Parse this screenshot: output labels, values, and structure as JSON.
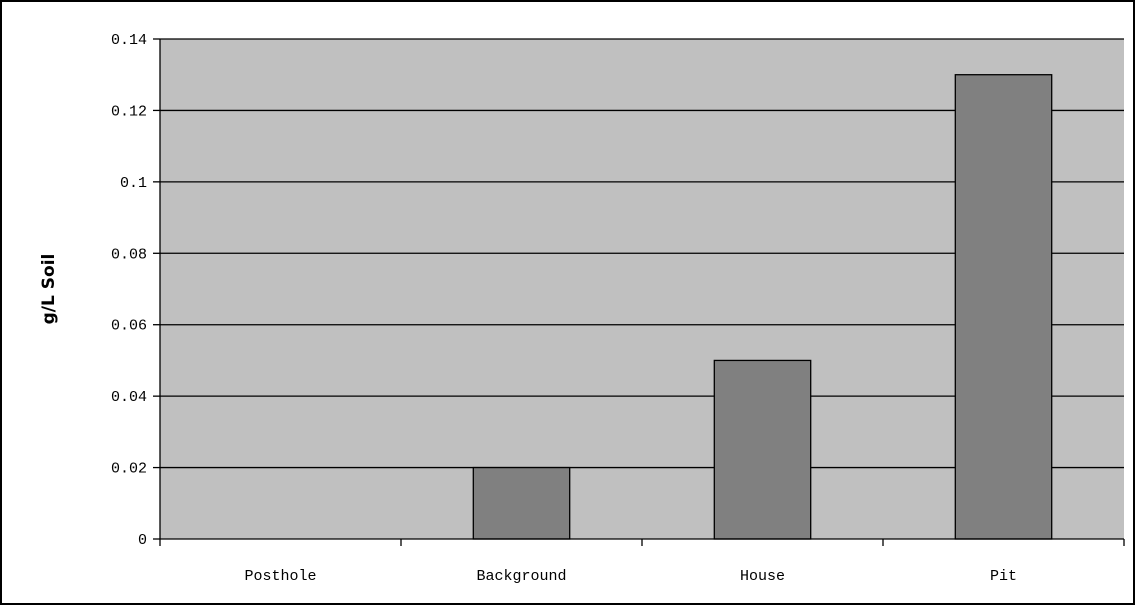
{
  "chart_data": {
    "type": "bar",
    "categories": [
      "Posthole",
      "Background",
      "House",
      "Pit"
    ],
    "values": [
      0,
      0.02,
      0.05,
      0.13
    ],
    "title": "",
    "xlabel": "",
    "ylabel": "g/L Soil",
    "ylim": [
      0,
      0.14
    ],
    "yticks": [
      "0",
      "0.02",
      "0.04",
      "0.06",
      "0.08",
      "0.1",
      "0.12",
      "0.14"
    ],
    "grid": true,
    "legend": "none",
    "colors": {
      "plot_background": "#c0c0c0",
      "bar_fill": "#808080",
      "bar_stroke": "#000000",
      "gridline": "#000000"
    }
  }
}
